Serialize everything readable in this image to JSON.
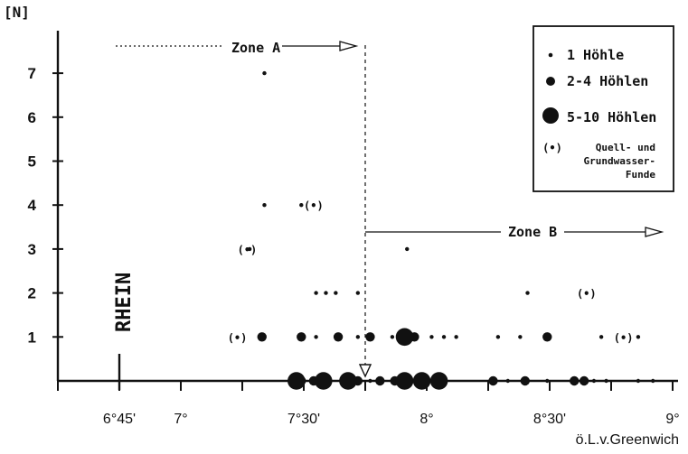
{
  "chart_data": {
    "type": "scatter",
    "title": "",
    "ylabel": "[N]",
    "xlabel": "ö.L.v.Greenwich",
    "xlim": [
      6.5,
      9.0
    ],
    "ylim": [
      0,
      8
    ],
    "y_ticks": [
      {
        "value": 1,
        "label": "1"
      },
      {
        "value": 2,
        "label": "2"
      },
      {
        "value": 3,
        "label": "3"
      },
      {
        "value": 4,
        "label": "4"
      },
      {
        "value": 5,
        "label": "5"
      },
      {
        "value": 6,
        "label": "6"
      },
      {
        "value": 7,
        "label": "7"
      }
    ],
    "x_ticks": [
      {
        "value": 6.75,
        "label": "6°45'"
      },
      {
        "value": 7.0,
        "label": "7°"
      },
      {
        "value": 7.5,
        "label": "7°30'"
      },
      {
        "value": 8.0,
        "label": "8°"
      },
      {
        "value": 8.5,
        "label": "8°30'"
      },
      {
        "value": 9.0,
        "label": "9°"
      }
    ],
    "minor_x_ticks": [
      6.5,
      6.75,
      7.0,
      7.25,
      7.5,
      7.75,
      8.0,
      8.25,
      8.5,
      8.75,
      9.0
    ],
    "legend": {
      "placement": "top-right",
      "entries": [
        {
          "size": "small",
          "label": "1  Höhle"
        },
        {
          "size": "medium",
          "label": "2-4 Höhlen"
        },
        {
          "size": "large",
          "label": "5-10 Höhlen"
        },
        {
          "size": "source",
          "symbol": "(•)",
          "label": "Quell- und Grundwasser- Funde"
        }
      ]
    },
    "annotations": {
      "rhein_label": "RHEIN",
      "rhein_x": 6.75,
      "zone_a_label": "Zone A",
      "zone_b_label": "Zone B",
      "zone_boundary_x": 7.75
    },
    "series": [
      {
        "name": "1 Höhle",
        "symbol": "small",
        "points": [
          {
            "x": 7.34,
            "y": 7
          },
          {
            "x": 7.34,
            "y": 4
          },
          {
            "x": 7.49,
            "y": 4
          },
          {
            "x": 7.28,
            "y": 3
          },
          {
            "x": 7.63,
            "y": 2
          },
          {
            "x": 7.55,
            "y": 2
          },
          {
            "x": 7.59,
            "y": 2
          },
          {
            "x": 7.72,
            "y": 2
          },
          {
            "x": 7.92,
            "y": 3
          },
          {
            "x": 8.41,
            "y": 2
          },
          {
            "x": 7.55,
            "y": 1
          },
          {
            "x": 7.72,
            "y": 1
          },
          {
            "x": 7.77,
            "y": 1
          },
          {
            "x": 7.86,
            "y": 1
          },
          {
            "x": 8.02,
            "y": 1
          },
          {
            "x": 8.07,
            "y": 1
          },
          {
            "x": 8.12,
            "y": 1
          },
          {
            "x": 8.29,
            "y": 1
          },
          {
            "x": 8.38,
            "y": 1
          },
          {
            "x": 8.71,
            "y": 1
          },
          {
            "x": 8.86,
            "y": 1
          },
          {
            "x": 7.6,
            "y": 0
          },
          {
            "x": 7.66,
            "y": 0
          },
          {
            "x": 7.77,
            "y": 0
          },
          {
            "x": 8.33,
            "y": 0
          },
          {
            "x": 8.49,
            "y": 0
          },
          {
            "x": 8.68,
            "y": 0
          },
          {
            "x": 8.73,
            "y": 0
          },
          {
            "x": 8.86,
            "y": 0
          },
          {
            "x": 8.92,
            "y": 0
          }
        ]
      },
      {
        "name": "2-4 Höhlen",
        "symbol": "medium",
        "points": [
          {
            "x": 7.33,
            "y": 1
          },
          {
            "x": 7.49,
            "y": 1
          },
          {
            "x": 7.64,
            "y": 1
          },
          {
            "x": 7.77,
            "y": 1
          },
          {
            "x": 7.95,
            "y": 1
          },
          {
            "x": 8.49,
            "y": 1
          },
          {
            "x": 7.49,
            "y": 0
          },
          {
            "x": 7.54,
            "y": 0
          },
          {
            "x": 7.72,
            "y": 0
          },
          {
            "x": 7.81,
            "y": 0
          },
          {
            "x": 7.87,
            "y": 0
          },
          {
            "x": 8.27,
            "y": 0
          },
          {
            "x": 8.4,
            "y": 0
          },
          {
            "x": 8.6,
            "y": 0
          },
          {
            "x": 8.64,
            "y": 0
          }
        ]
      },
      {
        "name": "5-10 Höhlen",
        "symbol": "large",
        "points": [
          {
            "x": 7.47,
            "y": 0
          },
          {
            "x": 7.58,
            "y": 0
          },
          {
            "x": 7.68,
            "y": 0
          },
          {
            "x": 7.91,
            "y": 0
          },
          {
            "x": 7.98,
            "y": 0
          },
          {
            "x": 8.05,
            "y": 0
          },
          {
            "x": 7.91,
            "y": 1
          }
        ]
      },
      {
        "name": "Quell- und Grundwasser-Funde",
        "symbol": "source",
        "points": [
          {
            "x": 7.27,
            "y": 3
          },
          {
            "x": 7.54,
            "y": 4
          },
          {
            "x": 7.23,
            "y": 1
          },
          {
            "x": 8.65,
            "y": 2
          },
          {
            "x": 8.8,
            "y": 1
          }
        ]
      }
    ]
  }
}
